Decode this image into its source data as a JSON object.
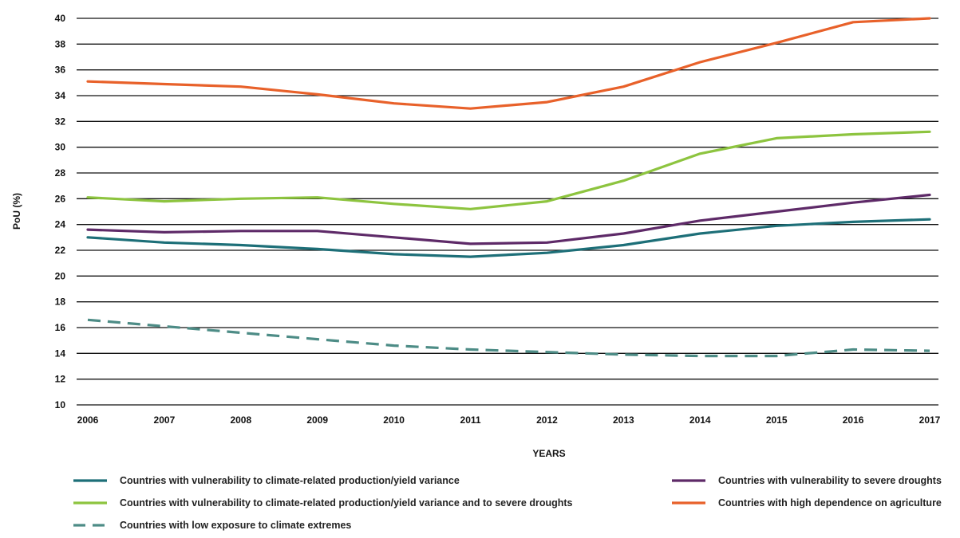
{
  "chart_data": {
    "type": "line",
    "title": "",
    "xlabel": "YEARS",
    "ylabel": "PoU (%)",
    "ylim": [
      10,
      40
    ],
    "yticks": [
      10,
      12,
      14,
      16,
      18,
      20,
      22,
      24,
      26,
      28,
      30,
      32,
      34,
      36,
      38,
      40
    ],
    "x": [
      "2006",
      "2007",
      "2008",
      "2009",
      "2010",
      "2011",
      "2012",
      "2013",
      "2014",
      "2015",
      "2016",
      "2017"
    ],
    "grid": "horizontal",
    "legend_position": "bottom",
    "series": [
      {
        "name": "Countries with vulnerability to climate-related production/yield variance",
        "color": "#1d6f78",
        "dash": "solid",
        "values": [
          23.0,
          22.6,
          22.4,
          22.1,
          21.7,
          21.5,
          21.8,
          22.4,
          23.3,
          23.9,
          24.2,
          24.4
        ]
      },
      {
        "name": "Countries with vulnerability to severe droughts",
        "color": "#5e2a68",
        "dash": "solid",
        "values": [
          23.6,
          23.4,
          23.5,
          23.5,
          23.0,
          22.5,
          22.6,
          23.3,
          24.3,
          25.0,
          25.7,
          26.3
        ]
      },
      {
        "name": "Countries with vulnerability to climate-related production/yield variance and to severe droughts",
        "color": "#8dc43f",
        "dash": "solid",
        "values": [
          26.1,
          25.8,
          26.0,
          26.1,
          25.6,
          25.2,
          25.8,
          27.4,
          29.5,
          30.7,
          31.0,
          31.2
        ]
      },
      {
        "name": "Countries with high dependence on agriculture",
        "color": "#e8612a",
        "dash": "solid",
        "values": [
          35.1,
          34.9,
          34.7,
          34.1,
          33.4,
          33.0,
          33.5,
          34.7,
          36.6,
          38.1,
          39.7,
          40.0
        ]
      },
      {
        "name": "Countries with low exposure to climate extremes",
        "color": "#4d8c86",
        "dash": "dashed",
        "values": [
          16.6,
          16.1,
          15.6,
          15.1,
          14.6,
          14.3,
          14.1,
          13.9,
          13.8,
          13.8,
          14.3,
          14.2
        ]
      }
    ]
  }
}
